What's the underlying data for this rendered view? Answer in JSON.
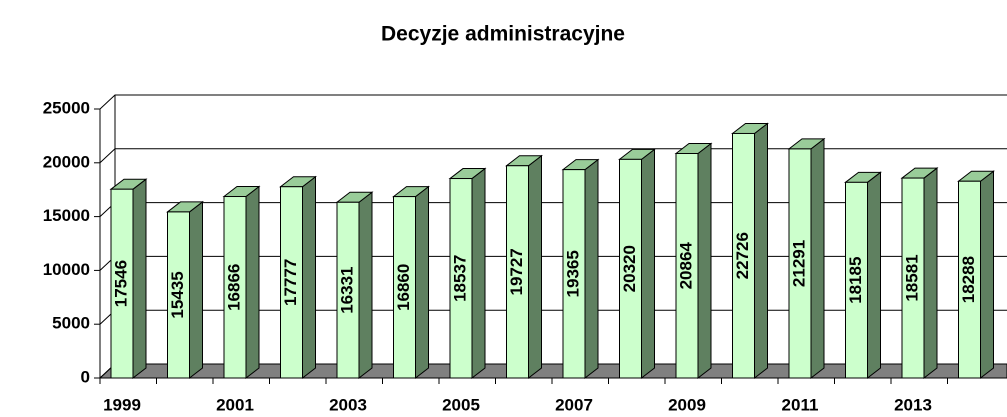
{
  "chart_data": {
    "type": "bar3d",
    "title": "Decyzje administracyjne",
    "categories": [
      "1999",
      null,
      "2001",
      null,
      "2003",
      null,
      "2005",
      null,
      "2007",
      null,
      "2009",
      null,
      "2011",
      null,
      "2013",
      null
    ],
    "values": [
      17546,
      15435,
      16866,
      17777,
      16331,
      16860,
      18537,
      19727,
      19365,
      20320,
      20864,
      22726,
      21291,
      18185,
      18581,
      18288
    ],
    "color": "#ccffcc",
    "side_color": "#5f8060",
    "top_color": "#99cc99",
    "ylim": [
      0,
      25000
    ],
    "yticks": [
      0,
      5000,
      10000,
      15000,
      20000,
      25000
    ],
    "grid": true
  }
}
